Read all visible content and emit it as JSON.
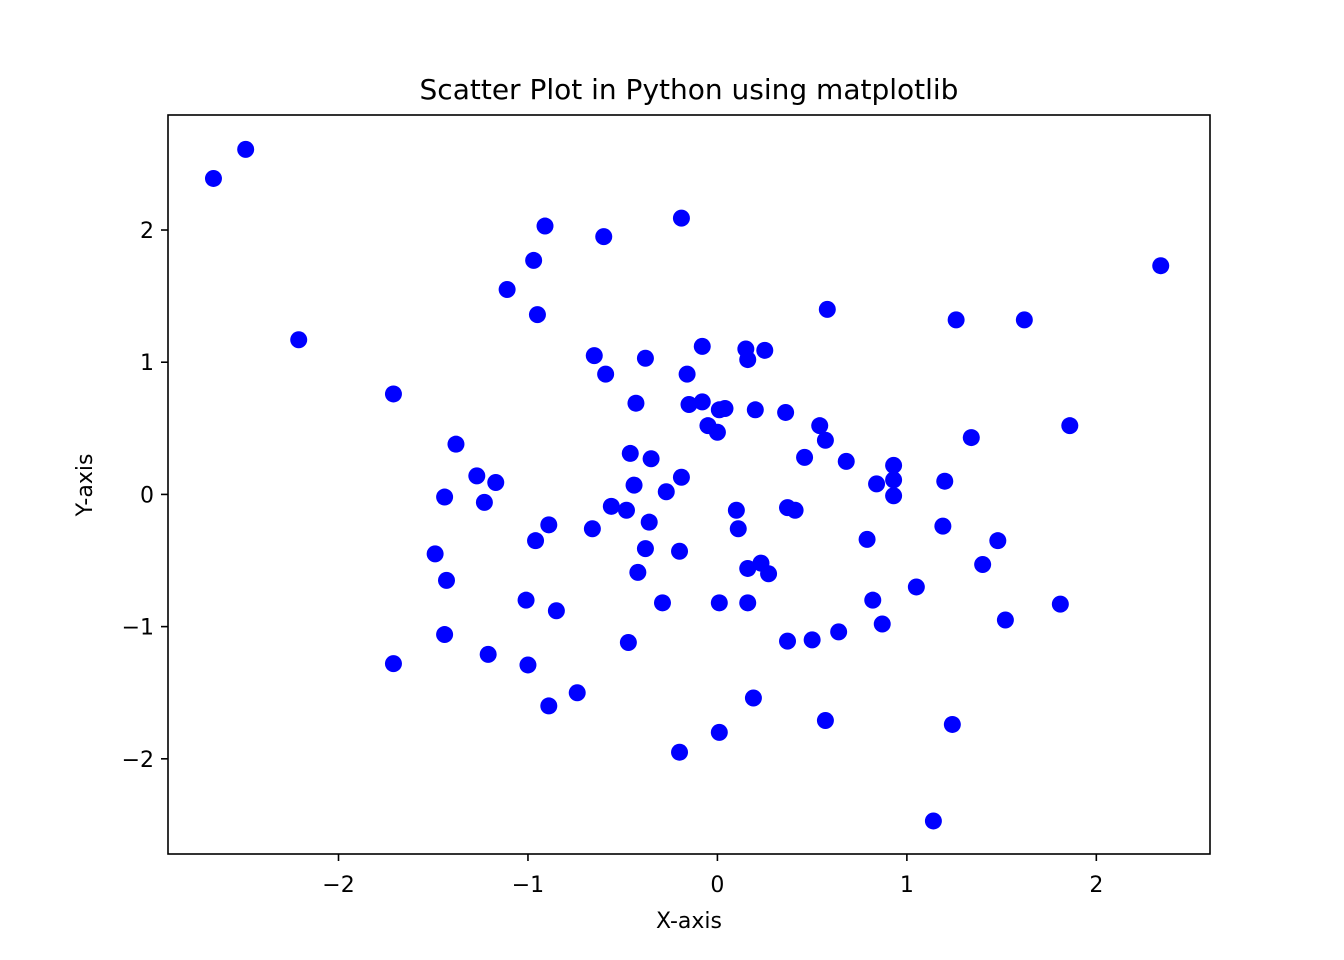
{
  "chart_data": {
    "type": "scatter",
    "title": "Scatter Plot in Python using matplotlib",
    "xlabel": "X-axis",
    "ylabel": "Y-axis",
    "xlim": [
      -2.9,
      2.6
    ],
    "ylim": [
      -2.72,
      2.87
    ],
    "x_ticks": [
      -2,
      -1,
      0,
      1,
      2
    ],
    "y_ticks": [
      -2,
      -1,
      0,
      1,
      2
    ],
    "x_tick_labels": [
      "−2",
      "−1",
      "0",
      "1",
      "2"
    ],
    "y_tick_labels": [
      "−2",
      "−1",
      "0",
      "1",
      "2"
    ],
    "grid": false,
    "marker_color": "#0000ff",
    "points": [
      [
        -2.66,
        2.39
      ],
      [
        -2.49,
        2.61
      ],
      [
        -2.21,
        1.17
      ],
      [
        -1.71,
        0.76
      ],
      [
        -1.71,
        -1.28
      ],
      [
        -1.38,
        0.38
      ],
      [
        -1.44,
        -0.02
      ],
      [
        -1.49,
        -0.45
      ],
      [
        -1.43,
        -0.65
      ],
      [
        -1.44,
        -1.06
      ],
      [
        -1.27,
        0.14
      ],
      [
        -1.17,
        0.09
      ],
      [
        -1.23,
        -0.06
      ],
      [
        -1.21,
        -1.21
      ],
      [
        -1.11,
        1.55
      ],
      [
        -0.97,
        1.77
      ],
      [
        -0.95,
        1.36
      ],
      [
        -0.91,
        2.03
      ],
      [
        -0.89,
        -0.23
      ],
      [
        -0.96,
        -0.35
      ],
      [
        -1.01,
        -0.8
      ],
      [
        -1.0,
        -1.29
      ],
      [
        -0.85,
        -0.88
      ],
      [
        -0.89,
        -1.6
      ],
      [
        -0.74,
        -1.5
      ],
      [
        -0.65,
        1.05
      ],
      [
        -0.59,
        0.91
      ],
      [
        -0.6,
        1.95
      ],
      [
        -0.38,
        1.03
      ],
      [
        -0.43,
        0.69
      ],
      [
        -0.46,
        0.31
      ],
      [
        -0.44,
        0.07
      ],
      [
        -0.35,
        0.27
      ],
      [
        -0.56,
        -0.09
      ],
      [
        -0.48,
        -0.12
      ],
      [
        -0.36,
        -0.21
      ],
      [
        -0.66,
        -0.26
      ],
      [
        -0.38,
        -0.41
      ],
      [
        -0.42,
        -0.59
      ],
      [
        -0.47,
        -1.12
      ],
      [
        -0.29,
        -0.82
      ],
      [
        -0.27,
        0.02
      ],
      [
        -0.19,
        2.09
      ],
      [
        -0.16,
        0.91
      ],
      [
        -0.15,
        0.68
      ],
      [
        -0.08,
        1.12
      ],
      [
        -0.08,
        0.7
      ],
      [
        -0.05,
        0.52
      ],
      [
        0.0,
        0.47
      ],
      [
        0.01,
        0.64
      ],
      [
        0.04,
        0.65
      ],
      [
        -0.19,
        0.13
      ],
      [
        -0.2,
        -0.43
      ],
      [
        -0.2,
        -1.95
      ],
      [
        0.1,
        -0.12
      ],
      [
        0.11,
        -0.26
      ],
      [
        0.15,
        1.1
      ],
      [
        0.16,
        1.02
      ],
      [
        0.2,
        0.64
      ],
      [
        0.25,
        1.09
      ],
      [
        0.16,
        -0.56
      ],
      [
        0.23,
        -0.52
      ],
      [
        0.27,
        -0.6
      ],
      [
        0.01,
        -0.82
      ],
      [
        0.16,
        -0.82
      ],
      [
        0.19,
        -1.54
      ],
      [
        0.01,
        -1.8
      ],
      [
        0.36,
        0.62
      ],
      [
        0.37,
        -0.1
      ],
      [
        0.41,
        -0.12
      ],
      [
        0.46,
        0.28
      ],
      [
        0.54,
        0.52
      ],
      [
        0.57,
        0.41
      ],
      [
        0.58,
        1.4
      ],
      [
        0.68,
        0.25
      ],
      [
        0.37,
        -1.11
      ],
      [
        0.5,
        -1.1
      ],
      [
        0.64,
        -1.04
      ],
      [
        0.57,
        -1.71
      ],
      [
        0.79,
        -0.34
      ],
      [
        0.82,
        -0.8
      ],
      [
        0.84,
        0.08
      ],
      [
        0.87,
        -0.98
      ],
      [
        0.93,
        0.22
      ],
      [
        0.93,
        0.11
      ],
      [
        0.93,
        -0.01
      ],
      [
        1.05,
        -0.7
      ],
      [
        1.2,
        0.1
      ],
      [
        1.19,
        -0.24
      ],
      [
        1.26,
        1.32
      ],
      [
        1.34,
        0.43
      ],
      [
        1.4,
        -0.53
      ],
      [
        1.48,
        -0.35
      ],
      [
        1.52,
        -0.95
      ],
      [
        1.62,
        1.32
      ],
      [
        1.81,
        -0.83
      ],
      [
        1.86,
        0.52
      ],
      [
        2.34,
        1.73
      ],
      [
        1.24,
        -1.74
      ],
      [
        1.14,
        -2.47
      ]
    ]
  }
}
